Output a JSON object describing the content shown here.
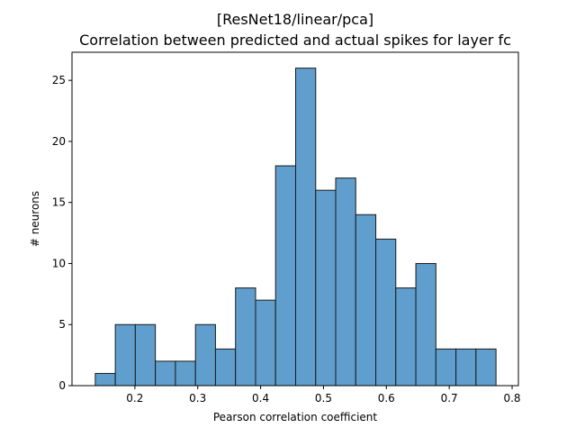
{
  "chart_data": {
    "type": "bar",
    "title_line1": "[ResNet18/linear/pca]",
    "title_line2": "Correlation between predicted and actual spikes for layer fc",
    "xlabel": "Pearson correlation coefficient",
    "ylabel": "# neurons",
    "xlim": [
      0.1,
      0.81
    ],
    "ylim": [
      0,
      27.3
    ],
    "grid": false,
    "bar_color": "#5f9ecd",
    "edge_color": "#1a1a1a",
    "bin_edges": [
      0.137,
      0.1689,
      0.2007,
      0.2326,
      0.2645,
      0.2964,
      0.3282,
      0.3601,
      0.392,
      0.4238,
      0.4557,
      0.4876,
      0.5194,
      0.5513,
      0.5832,
      0.615,
      0.6469,
      0.6788,
      0.7107,
      0.7425,
      0.7744
    ],
    "counts": [
      1,
      5,
      5,
      2,
      2,
      5,
      3,
      8,
      7,
      18,
      26,
      16,
      17,
      14,
      12,
      8,
      10,
      3,
      3,
      3
    ],
    "x_ticks": [
      {
        "value": 0.2,
        "label": "0.2"
      },
      {
        "value": 0.3,
        "label": "0.3"
      },
      {
        "value": 0.4,
        "label": "0.4"
      },
      {
        "value": 0.5,
        "label": "0.5"
      },
      {
        "value": 0.6,
        "label": "0.6"
      },
      {
        "value": 0.7,
        "label": "0.7"
      },
      {
        "value": 0.8,
        "label": "0.8"
      }
    ],
    "y_ticks": [
      {
        "value": 0,
        "label": "0"
      },
      {
        "value": 5,
        "label": "5"
      },
      {
        "value": 10,
        "label": "10"
      },
      {
        "value": 15,
        "label": "15"
      },
      {
        "value": 20,
        "label": "20"
      },
      {
        "value": 25,
        "label": "25"
      }
    ]
  }
}
